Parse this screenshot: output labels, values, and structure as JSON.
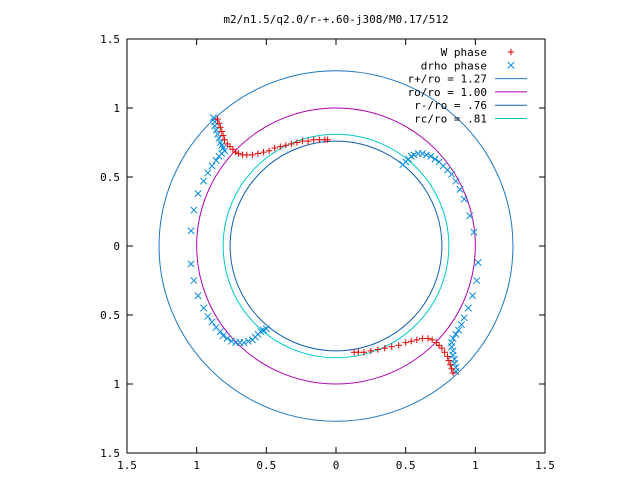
{
  "chart_data": {
    "type": "scatter",
    "title": "m2/n1.5/q2.0/r-+.60-j308/M0.17/512",
    "xlabel": "",
    "ylabel": "",
    "xlim": [
      -1.5,
      1.5
    ],
    "ylim": [
      -1.5,
      1.5
    ],
    "x_ticks": [
      -1.5,
      -1,
      -0.5,
      0,
      0.5,
      1,
      1.5
    ],
    "x_tick_labels": [
      "1.5",
      "1",
      "0.5",
      "0",
      "0.5",
      "1",
      "1.5"
    ],
    "y_ticks": [
      1.5,
      1,
      0.5,
      0,
      -0.5,
      -1,
      -1.5
    ],
    "y_tick_labels": [
      "1.5",
      "1",
      "0.5",
      "0",
      "0.5",
      "1",
      "1.5"
    ],
    "grid": false,
    "legend_position": "top-right",
    "legend": [
      {
        "label": "W phase",
        "marker": "+",
        "color": "#e00000"
      },
      {
        "label": "drho phase",
        "marker": "x",
        "color": "#0a8ce0"
      },
      {
        "label": "r+/ro = 1.27",
        "line": true,
        "color": "#1f77c0"
      },
      {
        "label": "ro/ro = 1.00",
        "line": true,
        "color": "#b000b0"
      },
      {
        "label": "r-/ro = .76",
        "line": true,
        "color": "#1060b0"
      },
      {
        "label": "rc/ro = .81",
        "line": true,
        "color": "#00c8c8"
      }
    ],
    "circles": [
      {
        "r": 1.27,
        "color": "#1f77c0"
      },
      {
        "r": 1.0,
        "color": "#b000b0"
      },
      {
        "r": 0.76,
        "color": "#1060b0"
      },
      {
        "r": 0.81,
        "color": "#00c8c8"
      }
    ],
    "series": [
      {
        "name": "W phase",
        "marker": "+",
        "color": "#e00000",
        "arms": [
          [
            [
              -0.85,
              0.92
            ],
            [
              -0.84,
              0.89
            ],
            [
              -0.83,
              0.86
            ],
            [
              -0.82,
              0.83
            ],
            [
              -0.81,
              0.8
            ],
            [
              -0.8,
              0.77
            ],
            [
              -0.78,
              0.74
            ],
            [
              -0.76,
              0.72
            ],
            [
              -0.74,
              0.7
            ],
            [
              -0.72,
              0.68
            ],
            [
              -0.7,
              0.67
            ],
            [
              -0.67,
              0.66
            ],
            [
              -0.64,
              0.66
            ],
            [
              -0.6,
              0.66
            ],
            [
              -0.56,
              0.67
            ],
            [
              -0.52,
              0.68
            ],
            [
              -0.48,
              0.69
            ],
            [
              -0.44,
              0.71
            ],
            [
              -0.4,
              0.72
            ],
            [
              -0.36,
              0.73
            ],
            [
              -0.32,
              0.74
            ],
            [
              -0.28,
              0.75
            ],
            [
              -0.24,
              0.76
            ],
            [
              -0.2,
              0.76
            ],
            [
              -0.16,
              0.77
            ],
            [
              -0.12,
              0.77
            ],
            [
              -0.08,
              0.77
            ],
            [
              -0.06,
              0.77
            ]
          ],
          [
            [
              0.84,
              -0.92
            ],
            [
              0.83,
              -0.89
            ],
            [
              0.82,
              -0.86
            ],
            [
              0.81,
              -0.83
            ],
            [
              0.8,
              -0.8
            ],
            [
              0.78,
              -0.77
            ],
            [
              0.76,
              -0.74
            ],
            [
              0.74,
              -0.72
            ],
            [
              0.72,
              -0.7
            ],
            [
              0.69,
              -0.68
            ],
            [
              0.66,
              -0.67
            ],
            [
              0.62,
              -0.67
            ],
            [
              0.58,
              -0.68
            ],
            [
              0.54,
              -0.69
            ],
            [
              0.5,
              -0.7
            ],
            [
              0.45,
              -0.72
            ],
            [
              0.4,
              -0.73
            ],
            [
              0.35,
              -0.74
            ],
            [
              0.3,
              -0.75
            ],
            [
              0.25,
              -0.76
            ],
            [
              0.2,
              -0.77
            ],
            [
              0.16,
              -0.77
            ],
            [
              0.13,
              -0.77
            ]
          ]
        ]
      },
      {
        "name": "drho phase",
        "marker": "x",
        "color": "#0a8ce0",
        "arms": [
          [
            [
              -0.88,
              0.93
            ],
            [
              -0.87,
              0.9
            ],
            [
              -0.87,
              0.87
            ],
            [
              -0.86,
              0.84
            ],
            [
              -0.85,
              0.81
            ],
            [
              -0.84,
              0.78
            ],
            [
              -0.83,
              0.75
            ],
            [
              -0.82,
              0.73
            ],
            [
              -0.81,
              0.71
            ],
            [
              -0.8,
              0.69
            ],
            [
              -0.82,
              0.67
            ],
            [
              -0.84,
              0.65
            ],
            [
              -0.86,
              0.62
            ],
            [
              -0.89,
              0.58
            ],
            [
              -0.92,
              0.53
            ],
            [
              -0.95,
              0.47
            ],
            [
              -0.99,
              0.38
            ],
            [
              -1.02,
              0.26
            ],
            [
              -1.04,
              0.11
            ],
            [
              -1.04,
              -0.13
            ],
            [
              -1.02,
              -0.25
            ],
            [
              -0.99,
              -0.36
            ],
            [
              -0.95,
              -0.45
            ],
            [
              -0.92,
              -0.51
            ],
            [
              -0.89,
              -0.55
            ],
            [
              -0.86,
              -0.59
            ],
            [
              -0.83,
              -0.62
            ],
            [
              -0.81,
              -0.65
            ],
            [
              -0.78,
              -0.67
            ],
            [
              -0.75,
              -0.69
            ],
            [
              -0.72,
              -0.7
            ],
            [
              -0.69,
              -0.7
            ],
            [
              -0.66,
              -0.7
            ],
            [
              -0.63,
              -0.69
            ],
            [
              -0.6,
              -0.68
            ],
            [
              -0.58,
              -0.66
            ],
            [
              -0.56,
              -0.64
            ],
            [
              -0.54,
              -0.62
            ],
            [
              -0.52,
              -0.61
            ],
            [
              -0.5,
              -0.6
            ]
          ],
          [
            [
              0.48,
              0.59
            ],
            [
              0.5,
              0.61
            ],
            [
              0.52,
              0.63
            ],
            [
              0.54,
              0.65
            ],
            [
              0.56,
              0.66
            ],
            [
              0.59,
              0.67
            ],
            [
              0.62,
              0.67
            ],
            [
              0.65,
              0.66
            ],
            [
              0.68,
              0.65
            ],
            [
              0.71,
              0.63
            ],
            [
              0.74,
              0.61
            ],
            [
              0.77,
              0.58
            ],
            [
              0.8,
              0.55
            ],
            [
              0.83,
              0.52
            ],
            [
              0.86,
              0.47
            ],
            [
              0.89,
              0.41
            ],
            [
              0.92,
              0.34
            ],
            [
              0.96,
              0.22
            ],
            [
              0.99,
              0.1
            ],
            [
              1.02,
              -0.12
            ],
            [
              1.01,
              -0.25
            ],
            [
              0.98,
              -0.36
            ],
            [
              0.95,
              -0.45
            ],
            [
              0.92,
              -0.52
            ],
            [
              0.9,
              -0.57
            ],
            [
              0.88,
              -0.61
            ],
            [
              0.86,
              -0.64
            ],
            [
              0.84,
              -0.67
            ],
            [
              0.83,
              -0.7
            ],
            [
              0.83,
              -0.73
            ],
            [
              0.84,
              -0.76
            ],
            [
              0.84,
              -0.79
            ],
            [
              0.85,
              -0.82
            ],
            [
              0.85,
              -0.85
            ],
            [
              0.86,
              -0.88
            ],
            [
              0.86,
              -0.91
            ]
          ]
        ]
      }
    ]
  }
}
